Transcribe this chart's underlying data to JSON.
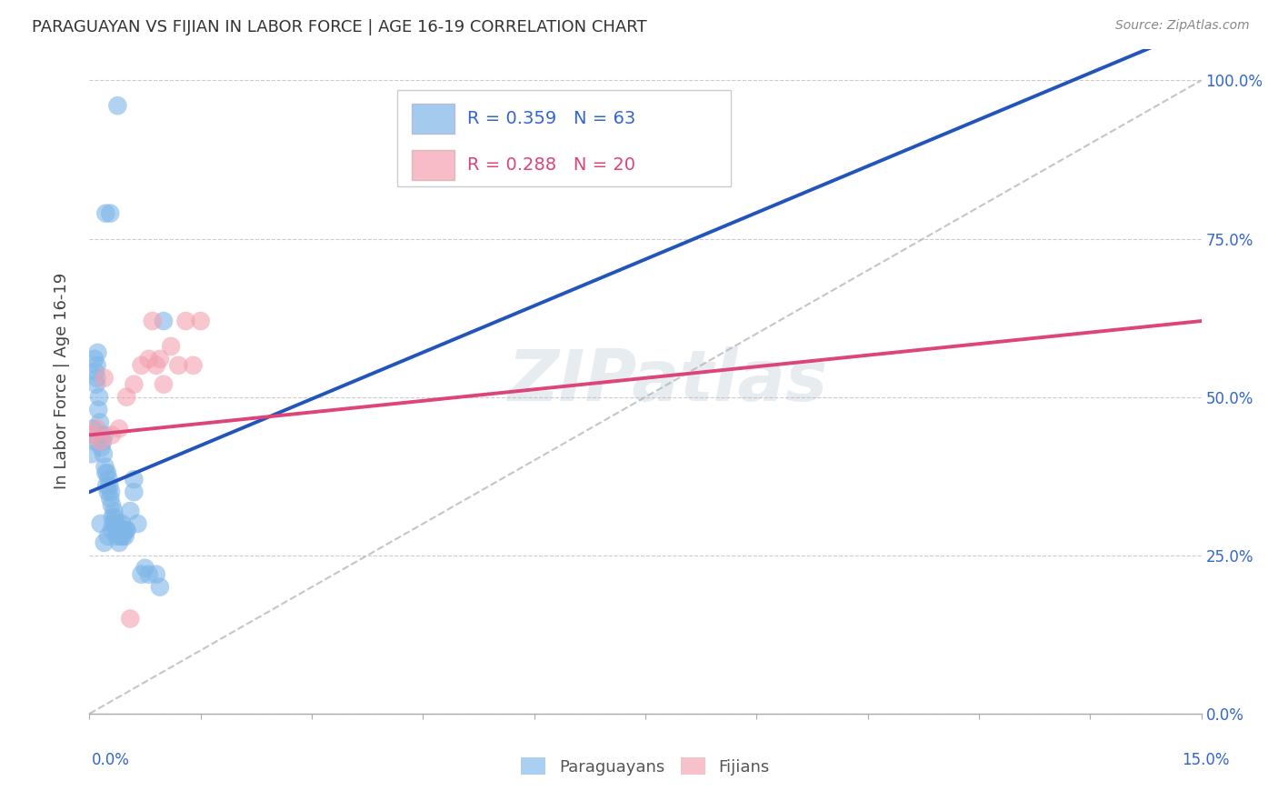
{
  "title": "PARAGUAYAN VS FIJIAN IN LABOR FORCE | AGE 16-19 CORRELATION CHART",
  "source": "Source: ZipAtlas.com",
  "ylabel": "In Labor Force | Age 16-19",
  "xlim": [
    0.0,
    0.15
  ],
  "ylim": [
    0.0,
    1.05
  ],
  "ytick_vals": [
    0.0,
    0.25,
    0.5,
    0.75,
    1.0
  ],
  "paraguayan_R": 0.359,
  "paraguayan_N": 63,
  "fijian_R": 0.288,
  "fijian_N": 20,
  "paraguayan_color": "#7EB6E8",
  "fijian_color": "#F4A0B0",
  "paraguayan_line_color": "#2255BB",
  "fijian_line_color": "#DD4477",
  "diagonal_color": "#BBBBBB",
  "watermark": "ZIPatlas",
  "watermark_color": "#AABBD0",
  "par_x": [
    0.0003,
    0.0003,
    0.0005,
    0.0006,
    0.0007,
    0.0008,
    0.0009,
    0.001,
    0.001,
    0.0011,
    0.0012,
    0.0013,
    0.0014,
    0.0015,
    0.0016,
    0.0018,
    0.0019,
    0.002,
    0.0021,
    0.0022,
    0.0023,
    0.0024,
    0.0025,
    0.0026,
    0.0027,
    0.0028,
    0.0029,
    0.003,
    0.0031,
    0.0032,
    0.0033,
    0.0034,
    0.0035,
    0.0036,
    0.0037,
    0.0038,
    0.004,
    0.0042,
    0.0044,
    0.0046,
    0.0048,
    0.005,
    0.0055,
    0.006,
    0.0065,
    0.007,
    0.0075,
    0.008,
    0.009,
    0.0095,
    0.01,
    0.0015,
    0.002,
    0.0025,
    0.003,
    0.0035,
    0.004,
    0.0045,
    0.005,
    0.006,
    0.0038,
    0.0022,
    0.0028
  ],
  "par_y": [
    0.44,
    0.41,
    0.45,
    0.43,
    0.56,
    0.54,
    0.52,
    0.55,
    0.53,
    0.57,
    0.48,
    0.5,
    0.46,
    0.44,
    0.42,
    0.43,
    0.41,
    0.44,
    0.39,
    0.38,
    0.36,
    0.38,
    0.35,
    0.37,
    0.36,
    0.34,
    0.35,
    0.33,
    0.31,
    0.3,
    0.32,
    0.31,
    0.3,
    0.29,
    0.28,
    0.3,
    0.29,
    0.28,
    0.3,
    0.29,
    0.28,
    0.29,
    0.32,
    0.35,
    0.3,
    0.22,
    0.23,
    0.22,
    0.22,
    0.2,
    0.62,
    0.3,
    0.27,
    0.28,
    0.29,
    0.3,
    0.27,
    0.28,
    0.29,
    0.37,
    0.96,
    0.79,
    0.79
  ],
  "fij_x": [
    0.0005,
    0.001,
    0.0015,
    0.002,
    0.003,
    0.004,
    0.005,
    0.006,
    0.007,
    0.008,
    0.0085,
    0.009,
    0.0095,
    0.01,
    0.011,
    0.012,
    0.013,
    0.014,
    0.015,
    0.0055
  ],
  "fij_y": [
    0.44,
    0.45,
    0.43,
    0.53,
    0.44,
    0.45,
    0.5,
    0.52,
    0.55,
    0.56,
    0.62,
    0.55,
    0.56,
    0.52,
    0.58,
    0.55,
    0.62,
    0.55,
    0.62,
    0.15
  ]
}
